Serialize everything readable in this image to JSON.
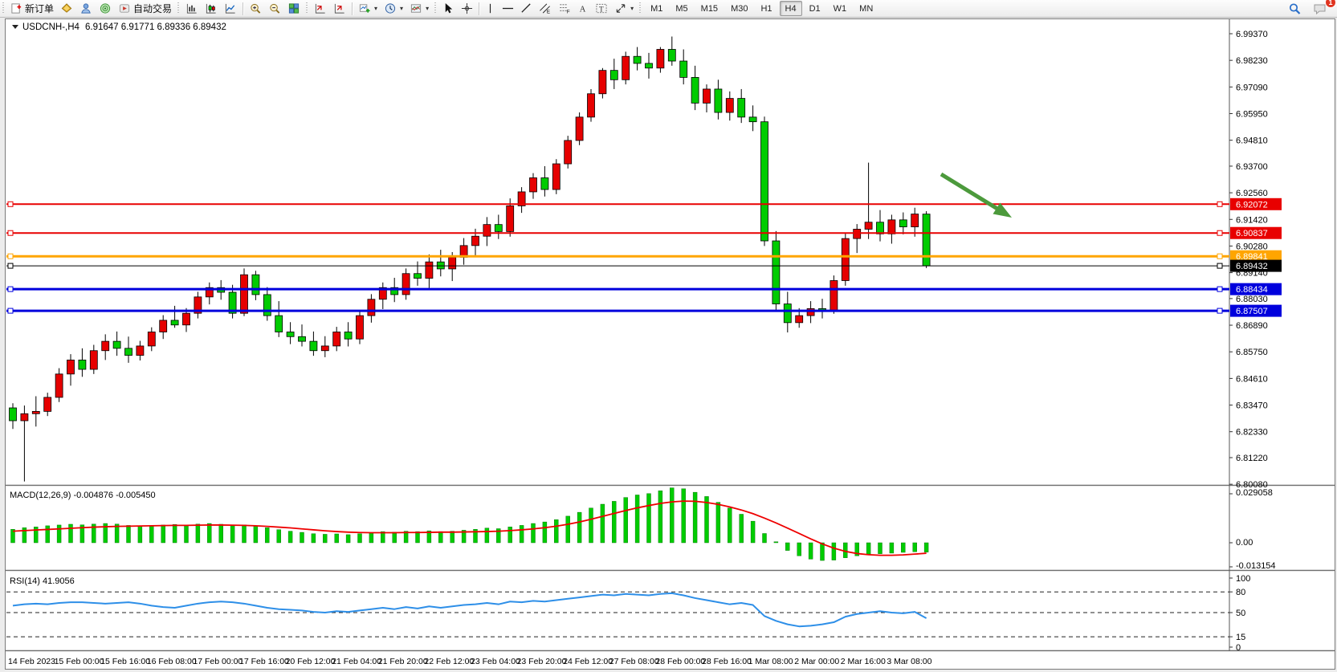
{
  "toolbar": {
    "new_order_label": "新订单",
    "auto_trading_label": "自动交易",
    "timeframes": [
      "M1",
      "M5",
      "M15",
      "M30",
      "H1",
      "H4",
      "D1",
      "W1",
      "MN"
    ],
    "active_timeframe": "H4",
    "notification_badge": "1",
    "icons": [
      "new-order",
      "seal",
      "profile",
      "signals",
      "auto-trading",
      "bar-chart",
      "candlestick-chart",
      "line-chart",
      "zoom-in",
      "zoom-out",
      "tile-windows",
      "indicator-window",
      "indicator-window-shift",
      "add-indicator",
      "periods-clock",
      "templates",
      "chart-objects",
      "cursor",
      "crosshair",
      "vertical-line",
      "horizontal-line",
      "trendline",
      "equidistant-channel",
      "fibonacci",
      "text",
      "text-label",
      "arrows",
      "search",
      "chat"
    ]
  },
  "chart": {
    "symbol": "USDCNH-,H4",
    "ohlc_text": "6.91647 6.91771 6.89336 6.89432",
    "macd_label": "MACD(12,26,9) -0.004876 -0.005450",
    "rsi_label": "RSI(14) 41.9056"
  },
  "chart_data": {
    "type": "candlestick",
    "symbol": "USDCNH",
    "timeframe": "H4",
    "color_convention": "chinese (red=bull, green=bear)",
    "bull_color": "#e60000",
    "bear_color": "#00cc00",
    "wick_color": "#000000",
    "price_axis_ticks": [
      6.9937,
      6.9823,
      6.9709,
      6.9595,
      6.9481,
      6.937,
      6.9256,
      6.9142,
      6.9028,
      6.8914,
      6.8803,
      6.8689,
      6.8575,
      6.8461,
      6.8347,
      6.8233,
      6.8122,
      6.8008
    ],
    "time_axis_labels": [
      "14 Feb 2023",
      "15 Feb 00:00",
      "15 Feb 16:00",
      "16 Feb 08:00",
      "17 Feb 00:00",
      "17 Feb 16:00",
      "20 Feb 12:00",
      "21 Feb 04:00",
      "21 Feb 20:00",
      "22 Feb 12:00",
      "23 Feb 04:00",
      "23 Feb 20:00",
      "24 Feb 12:00",
      "27 Feb 08:00",
      "28 Feb 00:00",
      "28 Feb 16:00",
      "1 Mar 08:00",
      "2 Mar 00:00",
      "2 Mar 16:00",
      "3 Mar 08:00"
    ],
    "label_every_n_candles": 4,
    "levels": [
      {
        "price": 6.92072,
        "label": "6.92072",
        "color": "#e80000",
        "width": 2
      },
      {
        "price": 6.90837,
        "label": "6.90837",
        "color": "#e80000",
        "width": 2
      },
      {
        "price": 6.89841,
        "label": "6.89841",
        "color": "#ffa500",
        "width": 3
      },
      {
        "price": 6.89432,
        "label": "6.89432",
        "color": "#000000",
        "width": 1,
        "current_price": true
      },
      {
        "price": 6.88434,
        "label": "6.88434",
        "color": "#0000dd",
        "width": 3
      },
      {
        "price": 6.87507,
        "label": "6.87507",
        "color": "#0000dd",
        "width": 3
      }
    ],
    "arrow_annotation": {
      "color": "#4c9a3c",
      "direction": "down-right"
    },
    "candles_ohlc": [
      [
        6.8335,
        6.8355,
        6.8245,
        6.828
      ],
      [
        6.828,
        6.8345,
        6.802,
        6.831
      ],
      [
        6.831,
        6.8385,
        6.8255,
        6.832
      ],
      [
        6.832,
        6.84,
        6.83,
        6.838
      ],
      [
        6.838,
        6.8505,
        6.836,
        6.848
      ],
      [
        6.848,
        6.8565,
        6.843,
        6.854
      ],
      [
        6.854,
        6.859,
        6.8468,
        6.85
      ],
      [
        6.85,
        6.8605,
        6.848,
        6.858
      ],
      [
        6.858,
        6.865,
        6.854,
        6.862
      ],
      [
        6.862,
        6.8662,
        6.8558,
        6.859
      ],
      [
        6.859,
        6.864,
        6.8528,
        6.856
      ],
      [
        6.856,
        6.8622,
        6.8538,
        6.86
      ],
      [
        6.86,
        6.868,
        6.8578,
        6.866
      ],
      [
        6.866,
        6.8732,
        6.863,
        6.871
      ],
      [
        6.871,
        6.8772,
        6.8678,
        6.869
      ],
      [
        6.869,
        6.8762,
        6.866,
        6.874
      ],
      [
        6.874,
        6.8832,
        6.8718,
        6.881
      ],
      [
        6.881,
        6.8872,
        6.8778,
        6.885
      ],
      [
        6.885,
        6.8882,
        6.8798,
        6.883
      ],
      [
        6.883,
        6.8862,
        6.8718,
        6.874
      ],
      [
        6.874,
        6.8932,
        6.8728,
        6.8905
      ],
      [
        6.8905,
        6.8922,
        6.8796,
        6.882
      ],
      [
        6.882,
        6.8852,
        6.8708,
        6.873
      ],
      [
        6.873,
        6.8792,
        6.8638,
        6.866
      ],
      [
        6.866,
        6.8702,
        6.8608,
        6.864
      ],
      [
        6.864,
        6.8692,
        6.8598,
        6.862
      ],
      [
        6.862,
        6.8662,
        6.8558,
        6.858
      ],
      [
        6.858,
        6.8642,
        6.8552,
        6.86
      ],
      [
        6.86,
        6.8682,
        6.8578,
        6.866
      ],
      [
        6.866,
        6.8702,
        6.8598,
        6.863
      ],
      [
        6.863,
        6.8752,
        6.8608,
        6.873
      ],
      [
        6.873,
        6.8822,
        6.87,
        6.88
      ],
      [
        6.88,
        6.8872,
        6.8758,
        6.885
      ],
      [
        6.885,
        6.8892,
        6.8788,
        6.882
      ],
      [
        6.882,
        6.8932,
        6.8798,
        6.891
      ],
      [
        6.891,
        6.8962,
        6.8858,
        6.889
      ],
      [
        6.889,
        6.8992,
        6.8848,
        6.896
      ],
      [
        6.896,
        6.9012,
        6.8898,
        6.893
      ],
      [
        6.893,
        6.9002,
        6.8878,
        6.898
      ],
      [
        6.898,
        6.9062,
        6.8948,
        6.903
      ],
      [
        6.903,
        6.9102,
        6.8988,
        6.907
      ],
      [
        6.907,
        6.9152,
        6.9028,
        6.912
      ],
      [
        6.912,
        6.9162,
        6.9058,
        6.909
      ],
      [
        6.909,
        6.9232,
        6.9068,
        6.92
      ],
      [
        6.92,
        6.928,
        6.917,
        6.926
      ],
      [
        6.926,
        6.934,
        6.923,
        6.932
      ],
      [
        6.932,
        6.937,
        6.924,
        6.927
      ],
      [
        6.927,
        6.94,
        6.925,
        6.938
      ],
      [
        6.938,
        6.95,
        6.936,
        6.948
      ],
      [
        6.948,
        6.96,
        6.946,
        6.958
      ],
      [
        6.958,
        6.97,
        6.956,
        6.968
      ],
      [
        6.968,
        6.979,
        6.966,
        6.978
      ],
      [
        6.978,
        6.983,
        6.97,
        6.974
      ],
      [
        6.974,
        6.986,
        6.972,
        6.984
      ],
      [
        6.984,
        6.988,
        6.978,
        6.981
      ],
      [
        6.981,
        6.9855,
        6.9745,
        6.979
      ],
      [
        6.979,
        6.988,
        6.977,
        6.987
      ],
      [
        6.987,
        6.9925,
        6.98,
        6.982
      ],
      [
        6.982,
        6.987,
        6.972,
        6.975
      ],
      [
        6.975,
        6.98,
        6.961,
        6.964
      ],
      [
        6.964,
        6.972,
        6.96,
        6.97
      ],
      [
        6.97,
        6.974,
        6.957,
        6.96
      ],
      [
        6.96,
        6.969,
        6.9565,
        6.966
      ],
      [
        6.966,
        6.97,
        6.9555,
        6.958
      ],
      [
        6.958,
        6.963,
        6.952,
        6.956
      ],
      [
        6.956,
        6.9582,
        6.9028,
        6.905
      ],
      [
        6.905,
        6.9092,
        6.8748,
        6.878
      ],
      [
        6.878,
        6.8832,
        6.8658,
        6.87
      ],
      [
        6.87,
        6.8762,
        6.8678,
        6.873
      ],
      [
        6.873,
        6.8792,
        6.8698,
        6.876
      ],
      [
        6.876,
        6.8802,
        6.8718,
        6.875
      ],
      [
        6.875,
        6.8902,
        6.8738,
        6.888
      ],
      [
        6.888,
        6.9082,
        6.8858,
        6.906
      ],
      [
        6.906,
        6.9122,
        6.8998,
        6.91
      ],
      [
        6.91,
        6.9385,
        6.9058,
        6.913
      ],
      [
        6.913,
        6.9182,
        6.9048,
        6.908
      ],
      [
        6.908,
        6.9162,
        6.9038,
        6.914
      ],
      [
        6.914,
        6.9172,
        6.9078,
        6.911
      ],
      [
        6.911,
        6.9192,
        6.9068,
        6.9165
      ],
      [
        6.91647,
        6.91771,
        6.89336,
        6.89432
      ]
    ],
    "macd": {
      "params": "12,26,9",
      "main_value": -0.004876,
      "signal_value": -0.00545,
      "scale_ticks": [
        0.029058,
        0.0,
        -0.013154
      ],
      "histogram_color": "#00cc00",
      "signal_color": "#ee0000",
      "histogram": [
        0.007,
        0.0078,
        0.0082,
        0.0088,
        0.0092,
        0.0096,
        0.0093,
        0.0097,
        0.01,
        0.0097,
        0.009,
        0.0086,
        0.0088,
        0.0092,
        0.0095,
        0.0091,
        0.0097,
        0.01,
        0.0096,
        0.0088,
        0.0093,
        0.0087,
        0.0078,
        0.0068,
        0.006,
        0.0054,
        0.0047,
        0.0044,
        0.0046,
        0.0042,
        0.0047,
        0.0053,
        0.0058,
        0.0055,
        0.006,
        0.0058,
        0.0062,
        0.0058,
        0.006,
        0.0065,
        0.007,
        0.0076,
        0.0073,
        0.0082,
        0.009,
        0.01,
        0.0108,
        0.012,
        0.0138,
        0.0158,
        0.018,
        0.02,
        0.0215,
        0.0235,
        0.0248,
        0.0255,
        0.027,
        0.0285,
        0.028,
        0.0262,
        0.024,
        0.021,
        0.018,
        0.0148,
        0.0112,
        0.0048,
        0.0005,
        -0.004,
        -0.0068,
        -0.0085,
        -0.0092,
        -0.009,
        -0.0078,
        -0.0068,
        -0.006,
        -0.0057,
        -0.0054,
        -0.005,
        -0.0047,
        -0.004876
      ],
      "signal": [
        0.006,
        0.0063,
        0.0066,
        0.0069,
        0.0072,
        0.0075,
        0.0078,
        0.0081,
        0.0083,
        0.0085,
        0.0086,
        0.0087,
        0.0088,
        0.0089,
        0.009,
        0.009,
        0.0091,
        0.0092,
        0.0092,
        0.0091,
        0.009,
        0.0088,
        0.0085,
        0.0081,
        0.0077,
        0.0072,
        0.0067,
        0.0062,
        0.0058,
        0.0055,
        0.0053,
        0.0052,
        0.0052,
        0.0052,
        0.0053,
        0.0053,
        0.0054,
        0.0055,
        0.0055,
        0.0056,
        0.0057,
        0.0058,
        0.006,
        0.0063,
        0.0067,
        0.0072,
        0.0078,
        0.0086,
        0.0096,
        0.0108,
        0.0122,
        0.0137,
        0.0152,
        0.0167,
        0.0181,
        0.0193,
        0.0204,
        0.0212,
        0.0216,
        0.0215,
        0.0209,
        0.0199,
        0.0186,
        0.017,
        0.0151,
        0.0128,
        0.0103,
        0.0076,
        0.0048,
        0.002,
        -0.0006,
        -0.0028,
        -0.0045,
        -0.0056,
        -0.0062,
        -0.0065,
        -0.0065,
        -0.0063,
        -0.0059,
        -0.00545
      ]
    },
    "rsi": {
      "period": 14,
      "value": 41.9056,
      "levels": [
        80,
        50,
        15
      ],
      "scale_ticks": [
        100,
        80,
        50,
        15,
        0
      ],
      "line_color": "#2e8fe8",
      "values": [
        60,
        62,
        63,
        62,
        64,
        65,
        65,
        64,
        63,
        64,
        65,
        63,
        60,
        58,
        57,
        60,
        63,
        65,
        66,
        65,
        63,
        60,
        57,
        55,
        54,
        53,
        51,
        50,
        52,
        51,
        53,
        55,
        57,
        55,
        58,
        56,
        59,
        57,
        59,
        61,
        62,
        64,
        62,
        66,
        65,
        67,
        66,
        68,
        70,
        72,
        74,
        76,
        75,
        77,
        76,
        75,
        77,
        78,
        75,
        71,
        68,
        65,
        62,
        64,
        61,
        45,
        38,
        33,
        30,
        31,
        33,
        36,
        44,
        48,
        50,
        52,
        50,
        49,
        51,
        41.9
      ]
    }
  }
}
